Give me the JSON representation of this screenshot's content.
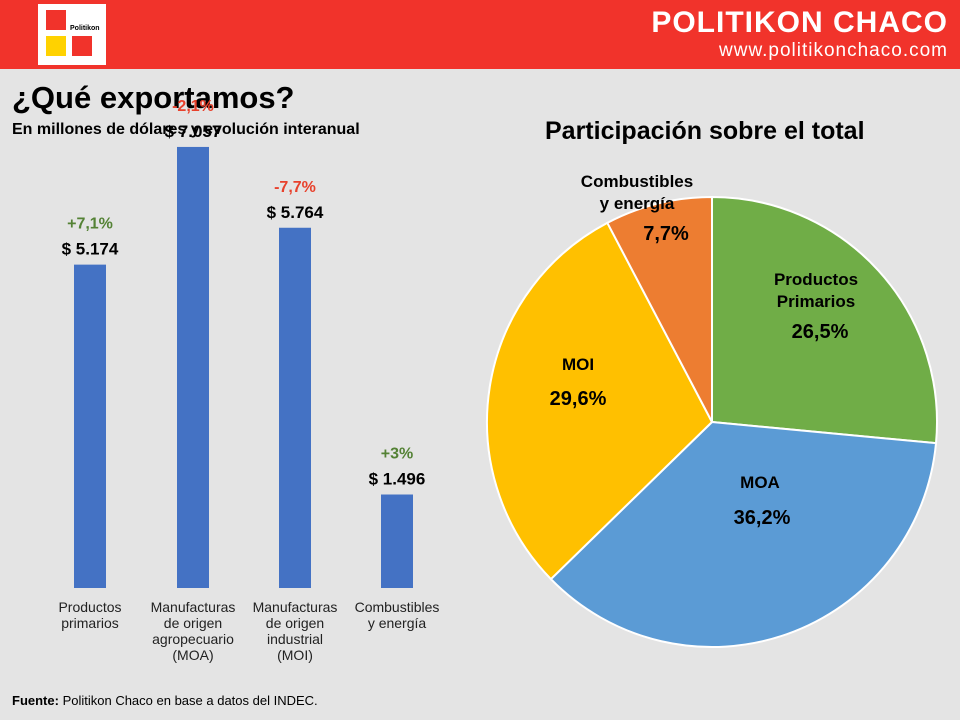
{
  "header": {
    "logo_text": "Politikon",
    "brand_name": "POLITIKON CHACO",
    "brand_url": "www.politikonchaco.com"
  },
  "title": "¿Qué exportamos?",
  "subtitle": "En millones de dólares y evolución interanual",
  "source": {
    "label": "Fuente:",
    "text": " Politikon Chaco en base a datos del INDEC."
  },
  "colors": {
    "header": "#f1332b",
    "bar": "#4472c4",
    "positive": "#548235",
    "negative": "#e8412c"
  },
  "chart_data": [
    {
      "type": "bar",
      "categories": [
        [
          "Productos",
          "primarios"
        ],
        [
          "Manufacturas",
          "de origen",
          "agropecuario",
          "(MOA)"
        ],
        [
          "Manufacturas",
          "de origen",
          "industrial",
          "(MOI)"
        ],
        [
          "Combustibles",
          "y energía"
        ]
      ],
      "values": [
        5174,
        7057,
        5764,
        1496
      ],
      "value_labels": [
        "$ 5.174",
        "$ 7.057",
        "$ 5.764",
        "$ 1.496"
      ],
      "change_labels": [
        "+7,1%",
        "-2,1%",
        "-7,7%",
        "+3%"
      ],
      "change_values": [
        7.1,
        -2.1,
        -7.7,
        3
      ],
      "ylim": [
        0,
        8000
      ],
      "grid": false
    },
    {
      "type": "pie",
      "title": "Participación sobre el total",
      "slices": [
        {
          "label": [
            "Productos",
            "Primarios"
          ],
          "value": 26.5,
          "value_label": "26,5%",
          "color": "#70ad47"
        },
        {
          "label": [
            "MOA"
          ],
          "value": 36.2,
          "value_label": "36,2%",
          "color": "#5b9bd5"
        },
        {
          "label": [
            "MOI"
          ],
          "value": 29.6,
          "value_label": "29,6%",
          "color": "#ffc000"
        },
        {
          "label": [
            "Combustibles",
            "y energía"
          ],
          "value": 7.7,
          "value_label": "7,7%",
          "color": "#ed7d31"
        }
      ]
    }
  ]
}
